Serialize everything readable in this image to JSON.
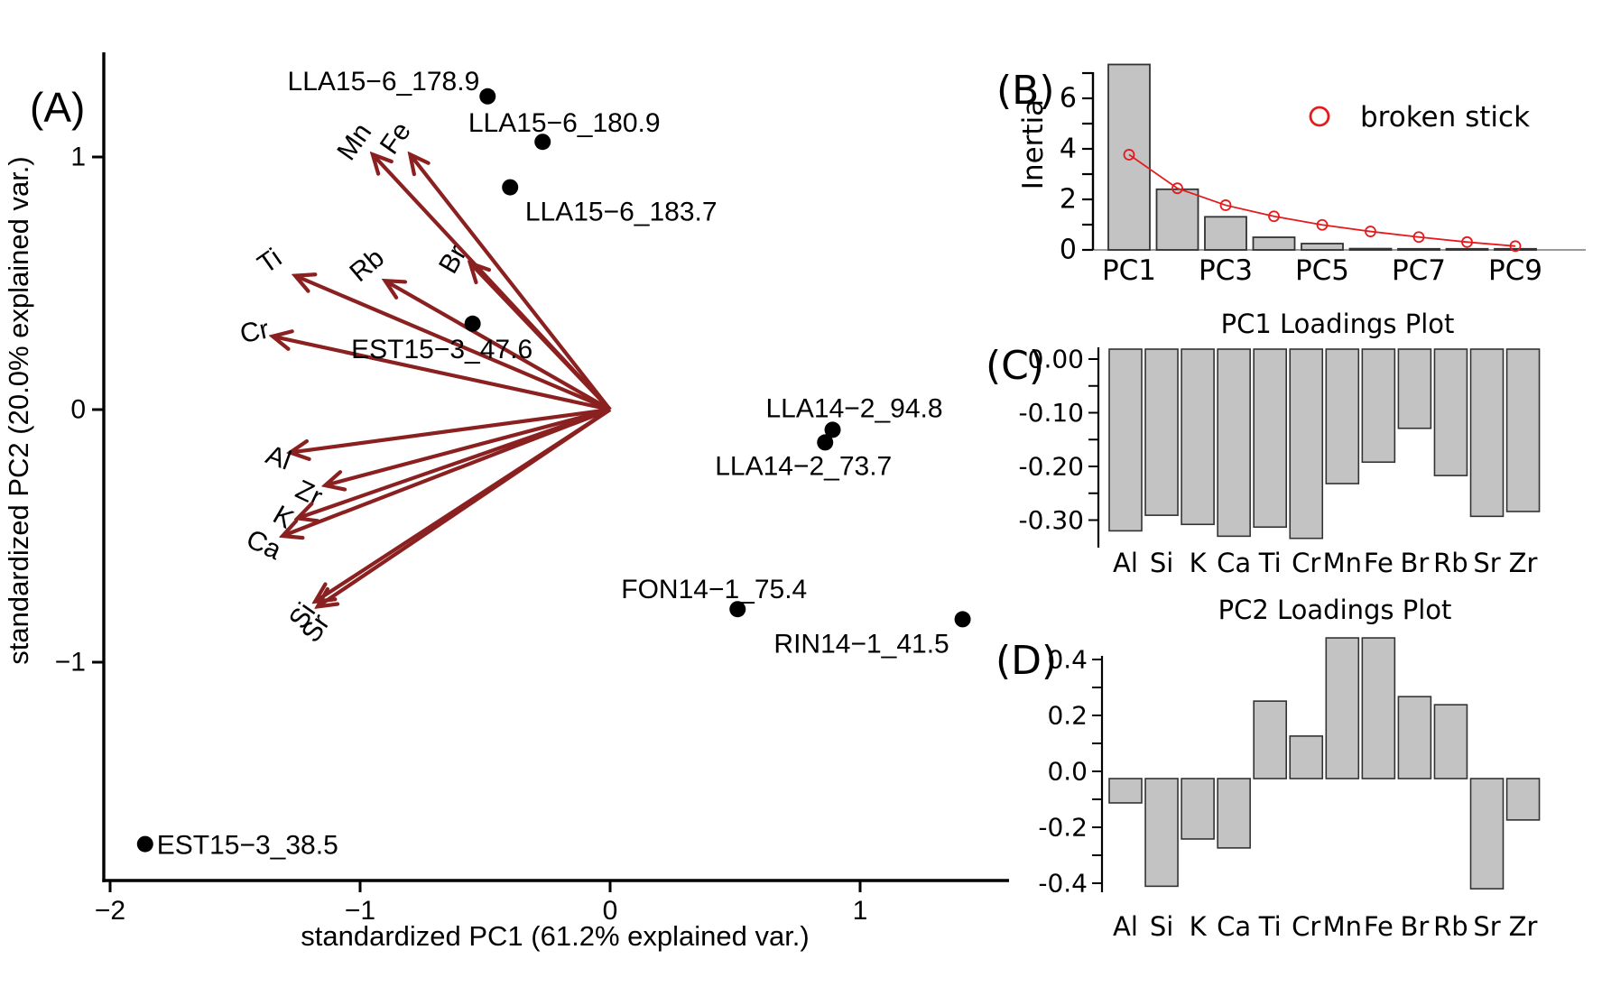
{
  "figure_type": "PCA biplot with scree plot and loadings plots",
  "colors": {
    "arrow": "#8b2020",
    "point": "#000000",
    "bar_fill": "#c3c3c3",
    "bar_border": "#333333",
    "broken_stick": "#e41a1c",
    "axis": "#000000",
    "baseline_gray": "#9a9a9a"
  },
  "chart_data": [
    {
      "panel": "A",
      "panel_label": "(A)",
      "type": "scatter",
      "subtype": "pca-biplot",
      "xlabel": "standardized PC1 (61.2% explained var.)",
      "ylabel": "standardized PC2 (20.0% explained var.)",
      "xlim": [
        -2.03,
        1.6
      ],
      "ylim": [
        -1.86,
        1.42
      ],
      "grid": false,
      "x_ticks": [
        {
          "v": -2,
          "label": "−2"
        },
        {
          "v": -1,
          "label": "−1"
        },
        {
          "v": 0,
          "label": "0"
        },
        {
          "v": 1,
          "label": "1"
        }
      ],
      "y_ticks": [
        {
          "v": 1,
          "label": "1"
        },
        {
          "v": 0,
          "label": "0"
        },
        {
          "v": -1,
          "label": "−1"
        }
      ],
      "points": [
        {
          "label": "LLA15−6_178.9",
          "x": -0.49,
          "y": 1.24,
          "anchor": "end",
          "label_offset": [
            -9,
            -7
          ]
        },
        {
          "label": "LLA15−6_180.9",
          "x": -0.27,
          "y": 1.06,
          "anchor": "middle",
          "label_offset": [
            24,
            -11
          ]
        },
        {
          "label": "LLA15−6_183.7",
          "x": -0.4,
          "y": 0.88,
          "anchor": "middle",
          "label_offset": [
            123,
            37
          ]
        },
        {
          "label": "EST15−3_47.6",
          "x": -0.55,
          "y": 0.34,
          "anchor": "middle",
          "label_offset": [
            -34,
            38
          ]
        },
        {
          "label": "LLA14−2_94.8",
          "x": 0.89,
          "y": -0.08,
          "anchor": "middle",
          "label_offset": [
            24,
            -14
          ]
        },
        {
          "label": "LLA14−2_73.7",
          "x": 0.86,
          "y": -0.13,
          "anchor": "middle",
          "label_offset": [
            -24,
            36
          ]
        },
        {
          "label": "FON14−1_75.4",
          "x": 0.51,
          "y": -0.79,
          "anchor": "middle",
          "label_offset": [
            -26,
            -12
          ]
        },
        {
          "label": "RIN14−1_41.5",
          "x": 1.41,
          "y": -0.83,
          "anchor": "middle",
          "label_offset": [
            -112,
            37
          ]
        },
        {
          "label": "EST15−3_38.5",
          "x": -1.86,
          "y": -1.72,
          "anchor": "start",
          "label_offset": [
            13,
            11
          ]
        }
      ],
      "loadings_arrows": [
        {
          "label": "Mn",
          "x": -0.95,
          "y": 1.01,
          "label_rot": -55,
          "label_offset": [
            -20,
            -14
          ]
        },
        {
          "label": "Fe",
          "x": -0.8,
          "y": 1.01,
          "label_rot": -55,
          "label_offset": [
            -16,
            -18
          ]
        },
        {
          "label": "Br",
          "x": -0.56,
          "y": 0.58,
          "label_rot": -60,
          "label_offset": [
            -19,
            -4
          ]
        },
        {
          "label": "Rb",
          "x": -0.9,
          "y": 0.51,
          "label_rot": -40,
          "label_offset": [
            -20,
            -17
          ]
        },
        {
          "label": "Ti",
          "x": -1.26,
          "y": 0.53,
          "label_rot": -35,
          "label_offset": [
            -28,
            -16
          ]
        },
        {
          "label": "Cr",
          "x": -1.35,
          "y": 0.29,
          "label_rot": -12,
          "label_offset": [
            -20,
            -5
          ]
        },
        {
          "label": "Al",
          "x": -1.28,
          "y": -0.17,
          "label_rot": 20,
          "label_offset": [
            -13,
            6
          ]
        },
        {
          "label": "Zr",
          "x": -1.14,
          "y": -0.3,
          "label_rot": 25,
          "label_offset": [
            -18,
            9
          ]
        },
        {
          "label": "K",
          "x": -1.25,
          "y": -0.43,
          "label_rot": 30,
          "label_offset": [
            -16,
            -1
          ]
        },
        {
          "label": "Ca",
          "x": -1.31,
          "y": -0.5,
          "label_rot": 25,
          "label_offset": [
            -21,
            10
          ]
        },
        {
          "label": "Si",
          "x": -1.18,
          "y": -0.76,
          "label_rot": -55,
          "label_offset": [
            -14,
            16
          ]
        },
        {
          "label": "Sr",
          "x": -1.17,
          "y": -0.78,
          "label_rot": -55,
          "label_offset": [
            -2,
            24
          ]
        }
      ]
    },
    {
      "panel": "B",
      "panel_label": "(B)",
      "type": "bar",
      "ylabel": "Inertia",
      "categories": [
        "PC1",
        "PC2",
        "PC3",
        "PC4",
        "PC5",
        "PC6",
        "PC7",
        "PC8",
        "PC9"
      ],
      "values": [
        7.34,
        2.4,
        1.31,
        0.5,
        0.25,
        0.05,
        0.04,
        0.03,
        0.01
      ],
      "x_axis_labels_shown": [
        "PC1",
        "PC3",
        "PC5",
        "PC7",
        "PC9"
      ],
      "ylim": [
        0,
        7.4
      ],
      "y_ticks": [
        {
          "v": 0,
          "label": "0"
        },
        {
          "v": 2,
          "label": "2"
        },
        {
          "v": 4,
          "label": "4"
        },
        {
          "v": 6,
          "label": "6"
        }
      ],
      "y_minor_ticks": [
        1,
        3,
        5,
        7
      ],
      "series": [
        {
          "name": "broken stick",
          "type": "line-open-circles",
          "values": [
            3.77,
            2.44,
            1.77,
            1.33,
            0.99,
            0.73,
            0.51,
            0.31,
            0.15
          ]
        }
      ],
      "legend": {
        "label": "broken stick",
        "position": "top-right"
      }
    },
    {
      "panel": "C",
      "panel_label": "(C)",
      "type": "bar",
      "title": "PC1 Loadings Plot",
      "categories": [
        "Al",
        "Si",
        "K",
        "Ca",
        "Ti",
        "Cr",
        "Mn",
        "Fe",
        "Br",
        "Rb",
        "Sr",
        "Zr"
      ],
      "values": [
        -0.32,
        -0.291,
        -0.308,
        -0.33,
        -0.313,
        -0.334,
        -0.232,
        -0.192,
        -0.129,
        -0.217,
        -0.293,
        -0.284
      ],
      "ylim": [
        -0.355,
        0.019
      ],
      "y_ticks": [
        {
          "v": 0,
          "label": "0.00"
        },
        {
          "v": -0.1,
          "label": "-0.10"
        },
        {
          "v": -0.2,
          "label": "-0.20"
        },
        {
          "v": -0.3,
          "label": "-0.30"
        }
      ],
      "y_minor_ticks": [
        -0.05,
        -0.15,
        -0.25
      ]
    },
    {
      "panel": "D",
      "panel_label": "(D)",
      "type": "bar",
      "title": "PC2 Loadings Plot",
      "categories": [
        "Al",
        "Si",
        "K",
        "Ca",
        "Ti",
        "Cr",
        "Mn",
        "Fe",
        "Br",
        "Rb",
        "Sr",
        "Zr"
      ],
      "values": [
        -0.087,
        -0.385,
        -0.216,
        -0.248,
        0.277,
        0.152,
        0.503,
        0.503,
        0.293,
        0.264,
        -0.394,
        -0.148
      ],
      "ylim": [
        -0.42,
        0.52
      ],
      "y_ticks": [
        {
          "v": 0.4,
          "label": "0.4"
        },
        {
          "v": 0.2,
          "label": "0.2"
        },
        {
          "v": 0,
          "label": "0.0"
        },
        {
          "v": -0.2,
          "label": "-0.2"
        },
        {
          "v": -0.4,
          "label": "-0.4"
        }
      ],
      "y_minor_ticks": [
        0.3,
        0.1,
        -0.1,
        -0.3
      ]
    }
  ]
}
